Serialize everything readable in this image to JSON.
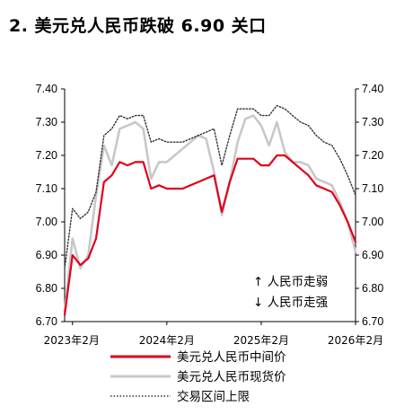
{
  "chart_data": {
    "type": "line",
    "title": "2. 美元兑人民币跌破 6.90 关口",
    "ylim": [
      6.7,
      7.4
    ],
    "y_ticks": [
      "7.40",
      "7.30",
      "7.20",
      "7.10",
      "7.00",
      "6.90",
      "6.80",
      "6.70"
    ],
    "x_range": [
      "2023-01",
      "2026-02"
    ],
    "x_ticks": [
      "2023年2月",
      "2024年2月",
      "2025年2月",
      "2026年2月"
    ],
    "annotations": [
      "↑ 人民币走弱",
      "↓ 人民币走强"
    ],
    "series": [
      {
        "name": "美元兑人民币中间价",
        "color": "#e0001b",
        "style": "solid",
        "x": [
          "2023-01",
          "2023-02",
          "2023-03",
          "2023-04",
          "2023-05",
          "2023-06",
          "2023-07",
          "2023-08",
          "2023-09",
          "2023-10",
          "2023-11",
          "2023-12",
          "2024-01",
          "2024-02",
          "2024-03",
          "2024-04",
          "2024-05",
          "2024-06",
          "2024-07",
          "2024-08",
          "2024-09",
          "2024-10",
          "2024-11",
          "2024-12",
          "2025-01",
          "2025-02",
          "2025-03",
          "2025-04",
          "2025-05",
          "2025-06",
          "2025-07",
          "2025-08",
          "2025-09",
          "2025-10",
          "2025-11",
          "2025-12",
          "2026-01",
          "2026-02"
        ],
        "values": [
          6.72,
          6.9,
          6.87,
          6.89,
          6.95,
          7.12,
          7.14,
          7.18,
          7.17,
          7.18,
          7.18,
          7.1,
          7.11,
          7.1,
          7.1,
          7.1,
          7.11,
          7.12,
          7.13,
          7.14,
          7.03,
          7.12,
          7.19,
          7.19,
          7.19,
          7.17,
          7.17,
          7.2,
          7.2,
          7.18,
          7.16,
          7.14,
          7.11,
          7.1,
          7.09,
          7.05,
          7.0,
          6.94
        ]
      },
      {
        "name": "美元兑人民币现货价",
        "color": "#c8c8c8",
        "style": "solid",
        "x": [
          "2023-01",
          "2023-02",
          "2023-03",
          "2023-04",
          "2023-05",
          "2023-06",
          "2023-07",
          "2023-08",
          "2023-09",
          "2023-10",
          "2023-11",
          "2023-12",
          "2024-01",
          "2024-02",
          "2024-03",
          "2024-04",
          "2024-05",
          "2024-06",
          "2024-07",
          "2024-08",
          "2024-09",
          "2024-10",
          "2024-11",
          "2024-12",
          "2025-01",
          "2025-02",
          "2025-03",
          "2025-04",
          "2025-05",
          "2025-06",
          "2025-07",
          "2025-08",
          "2025-09",
          "2025-10",
          "2025-11",
          "2025-12",
          "2026-01",
          "2026-02"
        ],
        "values": [
          6.73,
          6.95,
          6.86,
          6.9,
          7.08,
          7.23,
          7.17,
          7.28,
          7.29,
          7.3,
          7.28,
          7.13,
          7.18,
          7.18,
          7.2,
          7.22,
          7.24,
          7.26,
          7.25,
          7.15,
          7.02,
          7.12,
          7.24,
          7.31,
          7.32,
          7.29,
          7.23,
          7.3,
          7.21,
          7.18,
          7.18,
          7.17,
          7.13,
          7.12,
          7.11,
          7.06,
          7.0,
          6.91
        ]
      },
      {
        "name": "交易区间上限",
        "color": "#333333",
        "style": "dotted",
        "x": [
          "2023-01",
          "2023-02",
          "2023-03",
          "2023-04",
          "2023-05",
          "2023-06",
          "2023-07",
          "2023-08",
          "2023-09",
          "2023-10",
          "2023-11",
          "2023-12",
          "2024-01",
          "2024-02",
          "2024-03",
          "2024-04",
          "2024-05",
          "2024-06",
          "2024-07",
          "2024-08",
          "2024-09",
          "2024-10",
          "2024-11",
          "2024-12",
          "2025-01",
          "2025-02",
          "2025-03",
          "2025-04",
          "2025-05",
          "2025-06",
          "2025-07",
          "2025-08",
          "2025-09",
          "2025-10",
          "2025-11",
          "2025-12",
          "2026-01",
          "2026-02"
        ],
        "values": [
          6.86,
          7.04,
          7.01,
          7.03,
          7.09,
          7.26,
          7.28,
          7.32,
          7.31,
          7.32,
          7.32,
          7.24,
          7.25,
          7.24,
          7.24,
          7.24,
          7.25,
          7.26,
          7.27,
          7.28,
          7.17,
          7.26,
          7.34,
          7.34,
          7.34,
          7.32,
          7.32,
          7.35,
          7.34,
          7.32,
          7.3,
          7.29,
          7.26,
          7.24,
          7.23,
          7.19,
          7.14,
          7.08
        ]
      }
    ],
    "legend_position": "bottom"
  }
}
